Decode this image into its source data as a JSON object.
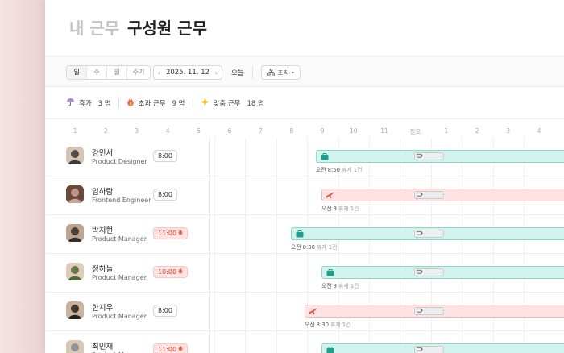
{
  "tabs": {
    "mine": "내 근무",
    "team": "구성원 근무"
  },
  "toolbar": {
    "view_day": "일",
    "view_week": "주",
    "view_month": "월",
    "view_cycle": "주기",
    "date": "2025. 11. 12",
    "prev_icon": "‹",
    "next_icon": "›",
    "today": "오늘",
    "org": "조직"
  },
  "summary": {
    "leave_label": "휴가",
    "leave_count": "3 명",
    "overtime_label": "초과 근무",
    "overtime_count": "9 명",
    "custom_label": "맞춤 근무",
    "custom_count": "18 명"
  },
  "hours": [
    "1",
    "2",
    "3",
    "4",
    "5",
    "6",
    "7",
    "8",
    "9",
    "10",
    "11",
    "정오",
    "1",
    "2",
    "3",
    "4"
  ],
  "employees": [
    {
      "name": "강민서",
      "role": "Product Designer",
      "hours": "8:00",
      "over": false,
      "type": "work",
      "caption_time": "오전 8:50",
      "caption_break": "휴게 1건"
    },
    {
      "name": "임하람",
      "role": "Frontend Engineer",
      "hours": "8:00",
      "over": false,
      "type": "trip",
      "caption_time": "오전 9",
      "caption_break": "휴게 1건"
    },
    {
      "name": "박지현",
      "role": "Product Manager",
      "hours": "11:00",
      "over": true,
      "type": "work",
      "caption_time": "오전 8:00",
      "caption_break": "휴게 1건"
    },
    {
      "name": "정하늘",
      "role": "Product Manager",
      "hours": "10:00",
      "over": true,
      "type": "work",
      "caption_time": "오전 9",
      "caption_break": "휴게 1건"
    },
    {
      "name": "한지우",
      "role": "Product Manager",
      "hours": "8:00",
      "over": false,
      "type": "trip",
      "caption_time": "오전 8:30",
      "caption_break": "휴게 1건"
    },
    {
      "name": "최민재",
      "role": "Product Manager",
      "hours": "11:00",
      "over": true,
      "type": "work",
      "caption_time": "",
      "caption_break": ""
    }
  ],
  "colors": {
    "work_fill": "#d3f3ef",
    "work_icon": "#1f9e8c",
    "trip_fill": "#fde3e3",
    "trip_icon": "#d9453a",
    "overtime": "#d33b2c"
  }
}
